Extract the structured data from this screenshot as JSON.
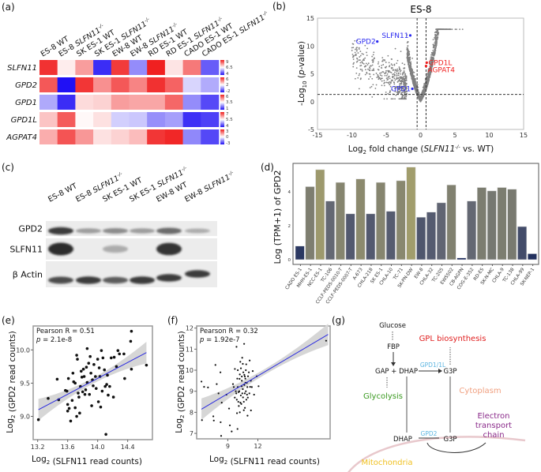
{
  "panel_labels": {
    "a": "(a)",
    "b": "(b)",
    "c": "(c)",
    "d": "(d)",
    "e": "(e)",
    "f": "(f)",
    "g": "(g)"
  },
  "chart_data": [
    {
      "panel": "a",
      "type": "heatmap",
      "columns": [
        {
          "text": "ES-8 WT"
        },
        {
          "text": "ES-8 ",
          "gene": "SLFN11",
          "sup": "-/-"
        },
        {
          "text": "SK ES-1 WT"
        },
        {
          "text": "SK ES-1 ",
          "gene": "SLFN11",
          "sup": "-/-"
        },
        {
          "text": "EW-8 WT"
        },
        {
          "text": "EW-8 ",
          "gene": "SLFN11",
          "sup": "-/-"
        },
        {
          "text": "RD ES-1 WT"
        },
        {
          "text": "RD ES-1 ",
          "gene": "SLFN11",
          "sup": "-/-"
        },
        {
          "text": "CADO ES-1 WT"
        },
        {
          "text": "CADO ES-1 ",
          "gene": "SLFN11",
          "sup": "-/-"
        }
      ],
      "rows": [
        {
          "gene": "SLFN11",
          "range": [
            4,
            9
          ],
          "colorbar_ticks": [
            "9",
            "6.5",
            "4"
          ],
          "values": [
            8.8,
            6.7,
            7.6,
            4.3,
            8.7,
            5.3,
            9.0,
            6.8,
            8.0,
            4.8
          ]
        },
        {
          "gene": "GPD2",
          "range": [
            -2,
            6
          ],
          "colorbar_ticks": [
            "6",
            "2",
            "-2"
          ],
          "values": [
            5.0,
            -2.0,
            5.6,
            4.0,
            5.0,
            4.2,
            5.7,
            4.8,
            1.3,
            0.6
          ]
        },
        {
          "gene": "GPD1",
          "range": [
            1,
            6
          ],
          "colorbar_ticks": [
            "6",
            "3.5",
            "1"
          ],
          "values": [
            2.6,
            1.3,
            3.9,
            4.0,
            4.6,
            4.5,
            4.5,
            5.2,
            2.3,
            1.6
          ]
        },
        {
          "gene": "GPD1L",
          "range": [
            4,
            7
          ],
          "colorbar_ticks": [
            "7",
            "5.5",
            "4"
          ],
          "values": [
            5.9,
            6.6,
            5.55,
            5.7,
            5.2,
            5.15,
            4.8,
            4.9,
            4.2,
            4.3
          ]
        },
        {
          "gene": "AGPAT4",
          "range": [
            -3,
            3
          ],
          "colorbar_ticks": [
            "3",
            "0",
            "-3"
          ],
          "values": [
            1.1,
            2.3,
            1.4,
            0.4,
            0.6,
            0.9,
            2.7,
            2.9,
            -1.5,
            -2.3
          ]
        }
      ],
      "colormap": {
        "low": "#2010f5",
        "mid": "#ffffff",
        "high": "#f02020"
      }
    },
    {
      "panel": "b",
      "type": "scatter",
      "title": "ES-8",
      "xlabel": {
        "pre": "Log",
        "sub": "2",
        "mid": " fold change (",
        "gene": "SLFN11",
        "sup": "-/-",
        "post": " vs. WT)"
      },
      "ylabel": {
        "pre": "-Log",
        "sub": "10",
        "mid": " (",
        "italic": "p",
        "post": "-value)"
      },
      "xlim": [
        -15,
        15
      ],
      "ylim": [
        -5,
        15
      ],
      "xticks": [
        -15,
        -10,
        -5,
        0,
        5,
        10,
        15
      ],
      "yticks": [
        -5,
        0,
        5,
        10,
        15
      ],
      "threshold_lines": {
        "x": [
          -0.5,
          0.8
        ],
        "y": 1.3
      },
      "highlighted": [
        {
          "label": "SLFN11",
          "x": -1.5,
          "y": 11.9,
          "color": "#2a2af0"
        },
        {
          "label": "GPD2",
          "x": -6.3,
          "y": 10.8,
          "color": "#2a2af0"
        },
        {
          "label": "GPD1",
          "x": -1.2,
          "y": 2.3,
          "color": "#2a2af0"
        },
        {
          "label": "GPD1L",
          "x": 0.9,
          "y": 7.0,
          "color": "#f02020"
        },
        {
          "label": "AGPAT4",
          "x": 0.8,
          "y": 6.4,
          "color": "#f02020"
        }
      ],
      "background_points_color": "#808080"
    },
    {
      "panel": "d",
      "type": "bar",
      "ylabel": "Log (TPM+1) of GPD2",
      "ylim": [
        -0.28,
        5.67
      ],
      "yticks": [
        0,
        2,
        4
      ],
      "categories": [
        "CADO ES-1",
        "MHH-ES-1",
        "NCC-ES-1",
        "TC-106",
        "CCLF-PEDS-0010-T",
        "CCLF-PEDS-0007-T",
        "A-673",
        "CHLA-218",
        "SK ES-1",
        "CHLA-10",
        "TC-71",
        "SK-PN-DW",
        "EW-8",
        "CHLA-32",
        "TC-205",
        "EWS502",
        "CB-AGPN",
        "COG-E-352",
        "RD-ES",
        "SK-N-MC",
        "CHLA-9",
        "TC-138",
        "CHLA-99",
        "SK-NEP-1"
      ],
      "values": [
        0.8,
        4.3,
        5.3,
        3.45,
        4.55,
        2.7,
        4.75,
        2.7,
        4.55,
        2.85,
        4.65,
        5.45,
        2.5,
        2.8,
        3.35,
        4.4,
        0.1,
        3.45,
        4.25,
        4.05,
        4.25,
        4.15,
        1.95,
        0.35
      ],
      "colors": {
        "low": "#1b2a5c",
        "mid": "#5f6473",
        "high": "#a39e6c"
      }
    },
    {
      "panel": "e",
      "type": "scatter",
      "annotation": {
        "r": "Pearson R = 0.51",
        "p_label": "p",
        "p_value": " = 2.1e-8"
      },
      "xlabel": {
        "pre": "Log",
        "sub": "2",
        "post": " (SLFN11 read counts)"
      },
      "ylabel": {
        "pre": "Log",
        "sub": "2",
        "post": " (GPD2 read counts)"
      },
      "xlim": [
        13.14,
        14.73
      ],
      "ylim": [
        8.65,
        10.36
      ],
      "xticks": [
        "13.2",
        "13.6",
        "14.0",
        "14.4"
      ],
      "yticks": [
        "9.0",
        "9.5",
        "10.0"
      ],
      "fit_line": [
        [
          13.21,
          9.1
        ],
        [
          14.65,
          9.96
        ]
      ],
      "fit_color": "#2a2ae0",
      "points": [
        [
          13.21,
          8.95
        ],
        [
          13.34,
          9.27
        ],
        [
          13.48,
          9.25
        ],
        [
          13.46,
          9.56
        ],
        [
          13.59,
          9.38
        ],
        [
          13.61,
          9.57
        ],
        [
          13.6,
          9.18
        ],
        [
          13.6,
          9.08
        ],
        [
          13.64,
          8.93
        ],
        [
          13.66,
          9.24
        ],
        [
          13.67,
          9.65
        ],
        [
          13.7,
          9.13
        ],
        [
          13.72,
          9.92
        ],
        [
          13.73,
          9.86
        ],
        [
          13.72,
          9.0
        ],
        [
          13.75,
          9.29
        ],
        [
          13.77,
          9.45
        ],
        [
          13.79,
          9.59
        ],
        [
          13.81,
          9.71
        ],
        [
          13.83,
          9.33
        ],
        [
          13.86,
          10.02
        ],
        [
          13.86,
          9.51
        ],
        [
          13.88,
          9.8
        ],
        [
          13.91,
          9.65
        ],
        [
          13.92,
          9.16
        ],
        [
          13.94,
          9.46
        ],
        [
          13.97,
          9.6
        ],
        [
          14.0,
          9.86
        ],
        [
          14.02,
          9.73
        ],
        [
          14.04,
          9.14
        ],
        [
          14.07,
          9.88
        ],
        [
          14.11,
          8.73
        ],
        [
          14.1,
          9.45
        ],
        [
          14.13,
          9.62
        ],
        [
          14.16,
          9.45
        ],
        [
          14.21,
          9.29
        ],
        [
          14.27,
          9.99
        ],
        [
          14.22,
          9.89
        ],
        [
          14.29,
          9.94
        ],
        [
          14.35,
          9.94
        ],
        [
          14.36,
          9.57
        ],
        [
          14.44,
          10.13
        ],
        [
          14.45,
          10.28
        ],
        [
          14.45,
          9.71
        ],
        [
          14.65,
          9.77
        ],
        [
          13.68,
          9.52
        ],
        [
          13.74,
          9.35
        ],
        [
          13.78,
          9.68
        ],
        [
          13.84,
          9.4
        ],
        [
          13.89,
          9.33
        ],
        [
          13.95,
          9.78
        ],
        [
          13.98,
          9.42
        ],
        [
          14.03,
          9.6
        ],
        [
          14.06,
          9.38
        ],
        [
          14.09,
          9.7
        ],
        [
          14.14,
          9.32
        ],
        [
          14.18,
          9.88
        ],
        [
          13.62,
          9.12
        ],
        [
          13.7,
          9.5
        ],
        [
          13.8,
          9.37
        ],
        [
          13.85,
          9.74
        ],
        [
          13.93,
          9.55
        ],
        [
          14.01,
          9.22
        ],
        [
          14.12,
          9.48
        ],
        [
          14.25,
          9.75
        ],
        [
          13.76,
          9.05
        ],
        [
          13.9,
          9.9
        ],
        [
          14.05,
          9.99
        ],
        [
          13.57,
          9.39
        ],
        [
          13.82,
          9.6
        ]
      ]
    },
    {
      "panel": "f",
      "type": "scatter",
      "annotation": {
        "r": "Pearson R = 0.32",
        "p_label": "p",
        "p_value": " = 1.92e-7"
      },
      "xlabel": {
        "pre": "Log",
        "sub": "2",
        "post": " (SLFN11 read counts)"
      },
      "ylabel": {
        "pre": "Log",
        "sub": "2",
        "post": " (GPD2 read counts)"
      },
      "xlim": [
        5.9,
        19.2
      ],
      "ylim": [
        6.74,
        12.1
      ],
      "xticks": [
        "9",
        "12"
      ],
      "yticks": [
        "7",
        "8",
        "9",
        "10",
        "11",
        "12"
      ],
      "fit_line": [
        [
          6.38,
          8.15
        ],
        [
          19.0,
          11.7
        ]
      ],
      "fit_color": "#2a2ae0",
      "points": [
        [
          6.38,
          9.46
        ],
        [
          6.64,
          9.21
        ],
        [
          7.03,
          9.18
        ],
        [
          6.43,
          7.63
        ],
        [
          7.56,
          7.81
        ],
        [
          7.61,
          7.61
        ],
        [
          7.77,
          10.25
        ],
        [
          7.9,
          9.34
        ],
        [
          8.08,
          8.9
        ],
        [
          8.27,
          9.9
        ],
        [
          8.29,
          7.53
        ],
        [
          8.34,
          6.88
        ],
        [
          8.4,
          8.46
        ],
        [
          8.87,
          8.84
        ],
        [
          9.13,
          8.18
        ],
        [
          9.21,
          7.38
        ],
        [
          9.39,
          7.09
        ],
        [
          9.52,
          9.34
        ],
        [
          9.71,
          10.06
        ],
        [
          9.87,
          11.11
        ],
        [
          9.92,
          7.96
        ],
        [
          9.97,
          7.21
        ],
        [
          10.08,
          8.96
        ],
        [
          10.18,
          9.59
        ],
        [
          10.26,
          8.46
        ],
        [
          10.31,
          10.09
        ],
        [
          10.39,
          9.24
        ],
        [
          10.44,
          10.59
        ],
        [
          10.52,
          8.71
        ],
        [
          10.63,
          11.25
        ],
        [
          10.65,
          9.78
        ],
        [
          10.71,
          8.21
        ],
        [
          10.76,
          9.4
        ],
        [
          10.84,
          10.28
        ],
        [
          10.92,
          8.84
        ],
        [
          10.97,
          7.84
        ],
        [
          11.02,
          9.71
        ],
        [
          11.18,
          10.46
        ],
        [
          11.23,
          9.21
        ],
        [
          11.31,
          8.09
        ],
        [
          11.49,
          9.96
        ],
        [
          11.62,
          8.84
        ],
        [
          11.89,
          9.71
        ],
        [
          12.07,
          9.24
        ],
        [
          18.8,
          11.4
        ],
        [
          9.8,
          9.0
        ],
        [
          9.9,
          8.6
        ],
        [
          10.0,
          9.2
        ],
        [
          10.1,
          8.3
        ],
        [
          10.2,
          9.8
        ],
        [
          10.3,
          8.8
        ],
        [
          10.4,
          9.5
        ],
        [
          10.5,
          9.1
        ],
        [
          10.6,
          8.5
        ],
        [
          10.7,
          9.7
        ],
        [
          10.8,
          9.0
        ],
        [
          10.9,
          9.4
        ],
        [
          11.0,
          8.7
        ],
        [
          11.1,
          9.9
        ],
        [
          10.0,
          10.0
        ],
        [
          10.2,
          8.0
        ],
        [
          10.45,
          8.9
        ],
        [
          10.55,
          9.9
        ],
        [
          10.35,
          8.4
        ],
        [
          10.65,
          9.3
        ],
        [
          10.85,
          8.6
        ],
        [
          9.95,
          9.6
        ],
        [
          10.15,
          9.0
        ],
        [
          10.5,
          10.3
        ],
        [
          10.75,
          9.6
        ],
        [
          10.95,
          9.2
        ],
        [
          11.15,
          8.9
        ],
        [
          9.7,
          8.7
        ],
        [
          9.6,
          9.2
        ],
        [
          10.25,
          10.4
        ],
        [
          10.6,
          8.1
        ],
        [
          11.3,
          9.5
        ],
        [
          10.05,
          8.5
        ],
        [
          10.4,
          9.7
        ],
        [
          10.8,
          10.0
        ],
        [
          9.85,
          8.9
        ],
        [
          10.7,
          8.9
        ],
        [
          11.4,
          9.2
        ]
      ]
    }
  ],
  "panel_c": {
    "lanes": [
      {
        "text": "ES-8 WT"
      },
      {
        "text": "ES-8 ",
        "gene": "SLFN11",
        "sup": "-/-"
      },
      {
        "text": "SK ES-1 WT"
      },
      {
        "text": "SK ES-1 ",
        "gene": "SLFN11",
        "sup": "-/-"
      },
      {
        "text": "EW-8 WT"
      },
      {
        "text": "EW-8 ",
        "gene": "SLFN11",
        "sup": "-/-"
      }
    ],
    "rows": [
      {
        "label": "GPD2",
        "band_intensity": [
          0.9,
          0.3,
          0.4,
          0.3,
          0.6,
          0.2
        ]
      },
      {
        "label": "SLFN11",
        "band_intensity": [
          1.0,
          0.0,
          0.2,
          0.0,
          0.95,
          0.0
        ]
      },
      {
        "label": "β Actin",
        "band_intensity": [
          0.8,
          0.9,
          0.7,
          0.9,
          0.9,
          0.9
        ]
      }
    ]
  },
  "diagram": {
    "nodes": {
      "glucose": "Glucose",
      "fbp": "FBP",
      "gap_dhap": "GAP + DHAP",
      "g3p_cyto": "G3P",
      "dhap_mito": "DHAP",
      "g3p_mito": "G3P"
    },
    "enzymes": {
      "gpd1": "GPD1/1L",
      "gpd2": "GPD2"
    },
    "labels": {
      "gpl": "GPL biosynthesis",
      "glycolysis": "Glycolysis",
      "cytoplasm": "Cytoplasm",
      "etc_1": "Electron",
      "etc_2": "transport",
      "etc_3": "chain",
      "mitochondria": "Mitochondria"
    },
    "colors": {
      "enzyme": "#5ab4e0",
      "gpl": "#e02020",
      "glycolysis": "#3a9a20",
      "cytoplasm": "#f0a080",
      "etc": "#8a2a8a",
      "mitochondria": "#f0c020",
      "membrane": "#e8c8cc"
    }
  }
}
